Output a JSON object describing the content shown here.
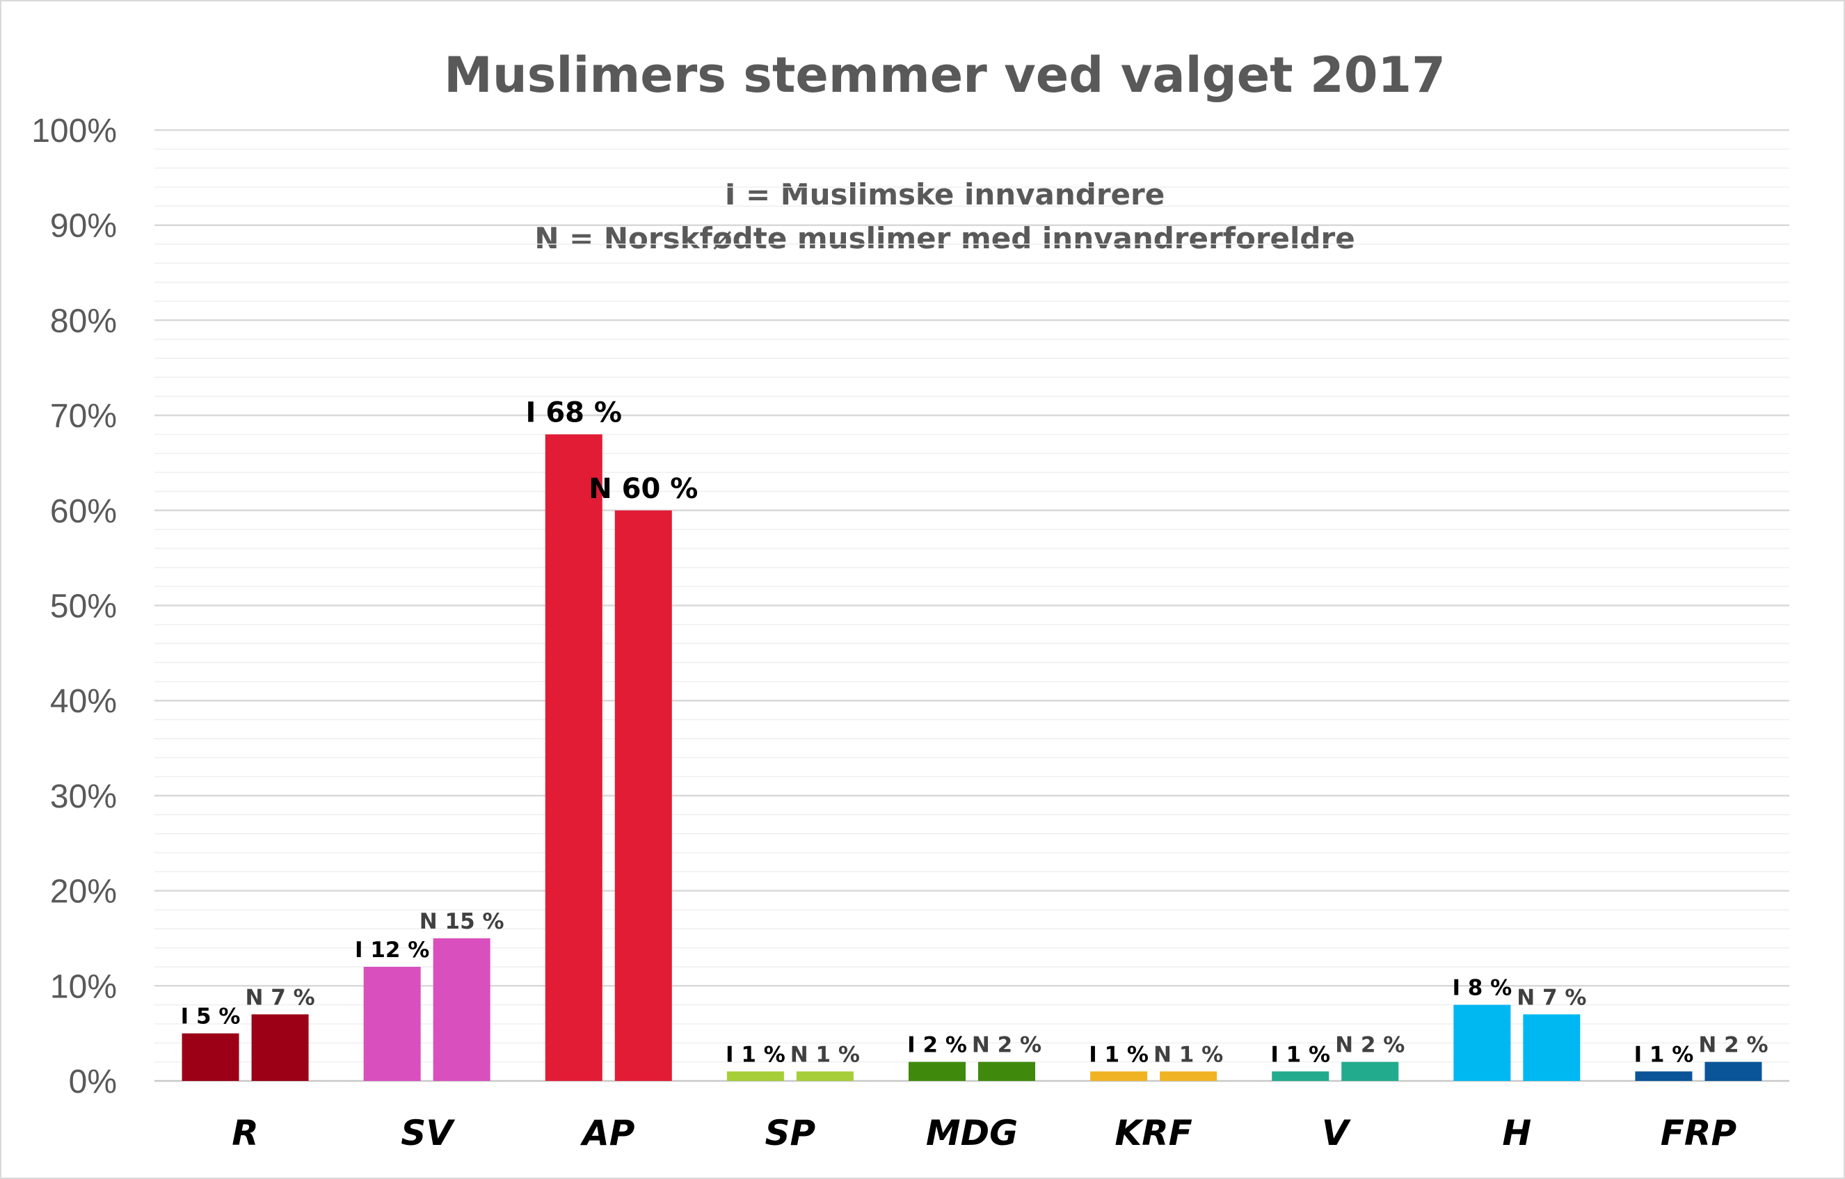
{
  "chart_data": {
    "type": "bar",
    "title": "Muslimers stemmer ved valget 2017",
    "annotations": [
      "I = Muslimske innvandrere",
      "N = Norskfødte muslimer med innvandrerforeldre"
    ],
    "categories": [
      "R",
      "SV",
      "AP",
      "SP",
      "MDG",
      "KRF",
      "V",
      "H",
      "FRP"
    ],
    "series": [
      {
        "key": "I",
        "values": [
          5,
          12,
          68,
          1,
          2,
          1,
          1,
          8,
          1
        ]
      },
      {
        "key": "N",
        "values": [
          7,
          15,
          60,
          1,
          2,
          1,
          2,
          7,
          2
        ]
      }
    ],
    "data_labels": {
      "I": [
        "I 5 %",
        "I 12 %",
        "I 68 %",
        "I 1 %",
        "I 2 %",
        "I 1 %",
        "I 1 %",
        "I 8 %",
        "I 1 %"
      ],
      "N": [
        "N 7 %",
        "N 15 %",
        "N 60 %",
        "N 1 %",
        "N 2 %",
        "N 1 %",
        "N 2 %",
        "N 7 %",
        "N 2 %"
      ]
    },
    "colors": [
      "#9b0016",
      "#d94fbe",
      "#e21c34",
      "#a6ce39",
      "#3f8a0c",
      "#f0b323",
      "#22ab8d",
      "#00b8f1",
      "#0a5598"
    ],
    "yticks": [
      "0%",
      "10%",
      "20%",
      "30%",
      "40%",
      "50%",
      "60%",
      "70%",
      "80%",
      "90%",
      "100%"
    ],
    "ylim": [
      0,
      100
    ],
    "grid": true,
    "legend": "none"
  }
}
